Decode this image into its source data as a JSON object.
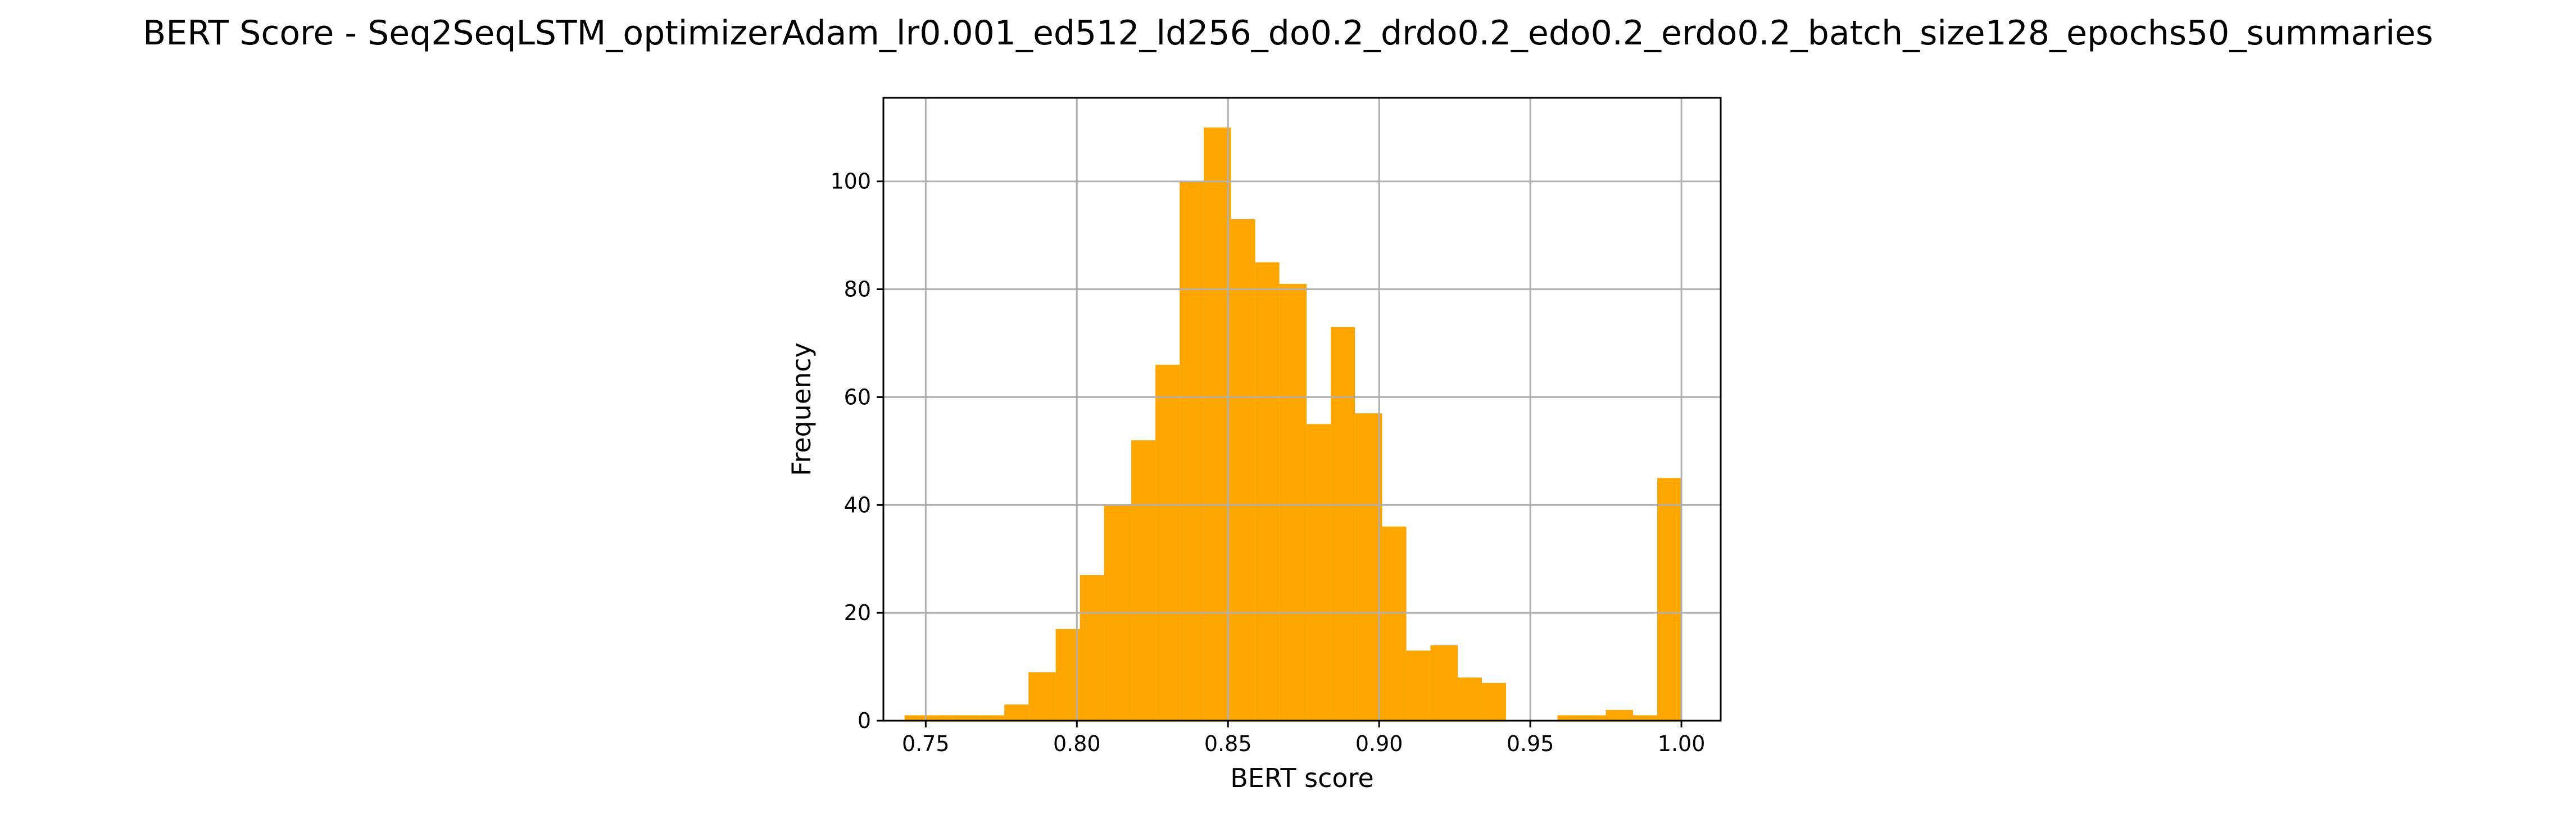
{
  "chart_data": {
    "type": "bar",
    "title": "BERT Score - Seq2SeqLSTM_optimizerAdam_lr0.001_ed512_ld256_do0.2_drdo0.2_edo0.2_erdo0.2_batch_size128_epochs50_summaries",
    "xlabel": "BERT score",
    "ylabel": "Frequency",
    "bar_color": "#ffa500",
    "grid": true,
    "legend": "none",
    "xlim": [
      0.736,
      1.013
    ],
    "ylim": [
      0,
      115.5
    ],
    "xticks": [
      0.75,
      0.8,
      0.85,
      0.9,
      0.95,
      1.0
    ],
    "xtick_labels": [
      "0.75",
      "0.80",
      "0.85",
      "0.90",
      "0.95",
      "1.00"
    ],
    "yticks": [
      0,
      20,
      40,
      60,
      80,
      100
    ],
    "ytick_labels": [
      "0",
      "20",
      "40",
      "60",
      "80",
      "100"
    ],
    "bins": [
      {
        "x0": 0.743,
        "x1": 0.751,
        "count": 1
      },
      {
        "x0": 0.751,
        "x1": 0.759,
        "count": 1
      },
      {
        "x0": 0.759,
        "x1": 0.768,
        "count": 1
      },
      {
        "x0": 0.768,
        "x1": 0.776,
        "count": 1
      },
      {
        "x0": 0.776,
        "x1": 0.784,
        "count": 3
      },
      {
        "x0": 0.784,
        "x1": 0.793,
        "count": 9
      },
      {
        "x0": 0.793,
        "x1": 0.801,
        "count": 17
      },
      {
        "x0": 0.801,
        "x1": 0.809,
        "count": 27
      },
      {
        "x0": 0.809,
        "x1": 0.818,
        "count": 40
      },
      {
        "x0": 0.818,
        "x1": 0.826,
        "count": 52
      },
      {
        "x0": 0.826,
        "x1": 0.834,
        "count": 66
      },
      {
        "x0": 0.834,
        "x1": 0.842,
        "count": 100
      },
      {
        "x0": 0.842,
        "x1": 0.851,
        "count": 110
      },
      {
        "x0": 0.851,
        "x1": 0.859,
        "count": 93
      },
      {
        "x0": 0.859,
        "x1": 0.867,
        "count": 85
      },
      {
        "x0": 0.867,
        "x1": 0.876,
        "count": 81
      },
      {
        "x0": 0.876,
        "x1": 0.884,
        "count": 55
      },
      {
        "x0": 0.884,
        "x1": 0.892,
        "count": 73
      },
      {
        "x0": 0.892,
        "x1": 0.901,
        "count": 57
      },
      {
        "x0": 0.901,
        "x1": 0.909,
        "count": 36
      },
      {
        "x0": 0.909,
        "x1": 0.917,
        "count": 13
      },
      {
        "x0": 0.917,
        "x1": 0.926,
        "count": 14
      },
      {
        "x0": 0.926,
        "x1": 0.934,
        "count": 8
      },
      {
        "x0": 0.934,
        "x1": 0.942,
        "count": 7
      },
      {
        "x0": 0.942,
        "x1": 0.95,
        "count": 0
      },
      {
        "x0": 0.95,
        "x1": 0.959,
        "count": 0
      },
      {
        "x0": 0.959,
        "x1": 0.967,
        "count": 1
      },
      {
        "x0": 0.967,
        "x1": 0.975,
        "count": 1
      },
      {
        "x0": 0.975,
        "x1": 0.984,
        "count": 2
      },
      {
        "x0": 0.984,
        "x1": 0.992,
        "count": 1
      },
      {
        "x0": 0.992,
        "x1": 1.0,
        "count": 45
      }
    ]
  }
}
